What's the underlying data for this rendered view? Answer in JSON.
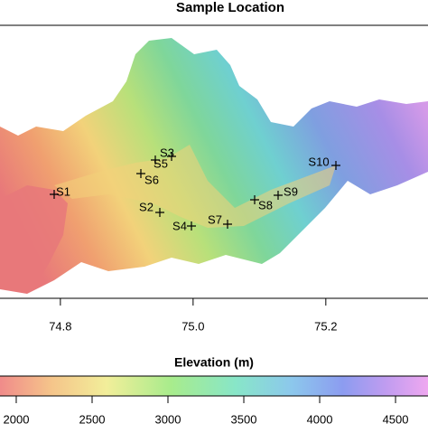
{
  "map": {
    "title": "Sample Location",
    "xlim": [
      74.709,
      75.354
    ],
    "xticks": [
      {
        "value": 74.8,
        "label": "74.8"
      },
      {
        "value": 75,
        "label": "75.0"
      },
      {
        "value": 75.2,
        "label": "75.2"
      }
    ],
    "samples": [
      "S1",
      "S2",
      "S3",
      "S4",
      "S5",
      "S6",
      "S7",
      "S8",
      "S9",
      "S10"
    ],
    "legend": {
      "title": "Elevation (m)",
      "clim": [
        1893,
        4714
      ],
      "ticks": [
        2000,
        2500,
        3000,
        3500,
        4000,
        4500
      ]
    }
  }
}
